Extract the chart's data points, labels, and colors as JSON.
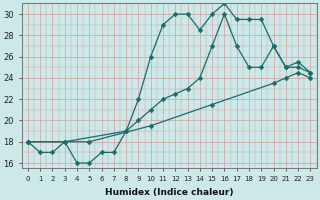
{
  "xlabel": "Humidex (Indice chaleur)",
  "xlim": [
    -0.5,
    23.5
  ],
  "ylim": [
    15.5,
    31
  ],
  "bg_color": "#cce8e8",
  "grid_color": "#d4a0a0",
  "line_color": "#1a6b6b",
  "line1_x": [
    0,
    1,
    2,
    3,
    4,
    5,
    6,
    7,
    8,
    9,
    10,
    11,
    12,
    13,
    14,
    15,
    16,
    17,
    18,
    19,
    20,
    21,
    22,
    23
  ],
  "line1_y": [
    18,
    17,
    17,
    18,
    16,
    16,
    17,
    17,
    19,
    22,
    26,
    29,
    30,
    30,
    28.5,
    30,
    31,
    29.5,
    29.5,
    29.5,
    27,
    25,
    25.5,
    24.5
  ],
  "line2_x": [
    0,
    3,
    8,
    9,
    10,
    11,
    12,
    13,
    14,
    15,
    16,
    17,
    18,
    19,
    20,
    21,
    22,
    23
  ],
  "line2_y": [
    18,
    18,
    19,
    20,
    21,
    22,
    22.5,
    23,
    24,
    27,
    30,
    27,
    25,
    25,
    27,
    25,
    25,
    24.5
  ],
  "line3_x": [
    0,
    5,
    10,
    15,
    20,
    21,
    22,
    23
  ],
  "line3_y": [
    18,
    18,
    19.5,
    21.5,
    23.5,
    24,
    24.5,
    24
  ]
}
